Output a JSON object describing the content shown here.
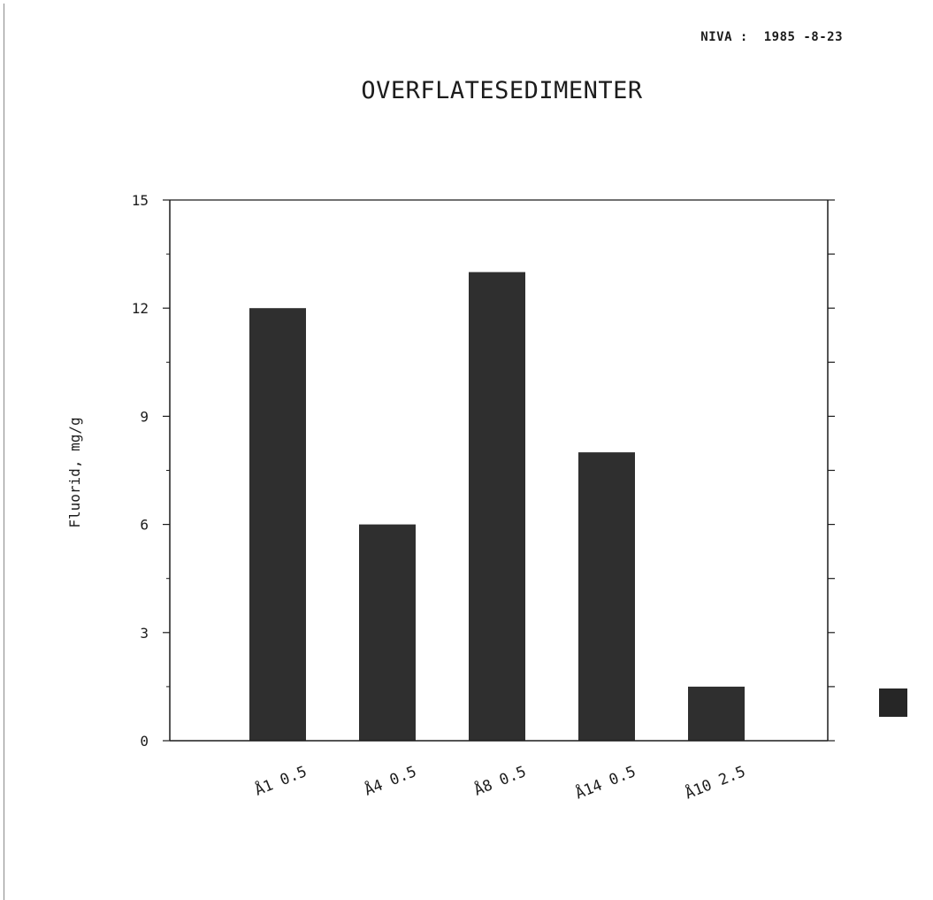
{
  "header": {
    "stamp": "NIVA :  1985 -8-23"
  },
  "colors": {
    "bar_fill": "#2f2f2f",
    "bar_legend": "#262626",
    "axis": "#1c1c1c"
  },
  "chart_data": {
    "type": "bar",
    "title": "OVERFLATESEDIMENTER",
    "xlabel": "",
    "ylabel": "Fluorid, mg/g",
    "categories": [
      "Å1 0.5",
      "Å4 0.5",
      "Å8 0.5",
      "Å14 0.5",
      "Å10 2.5"
    ],
    "series": [
      {
        "values": [
          12.0,
          6.0,
          13.0,
          8.0,
          1.5
        ]
      }
    ],
    "ylim": [
      0,
      15
    ],
    "yticks": [
      "0",
      "3",
      "6",
      "9",
      "12",
      "15"
    ],
    "grid": false,
    "legend": "right"
  }
}
